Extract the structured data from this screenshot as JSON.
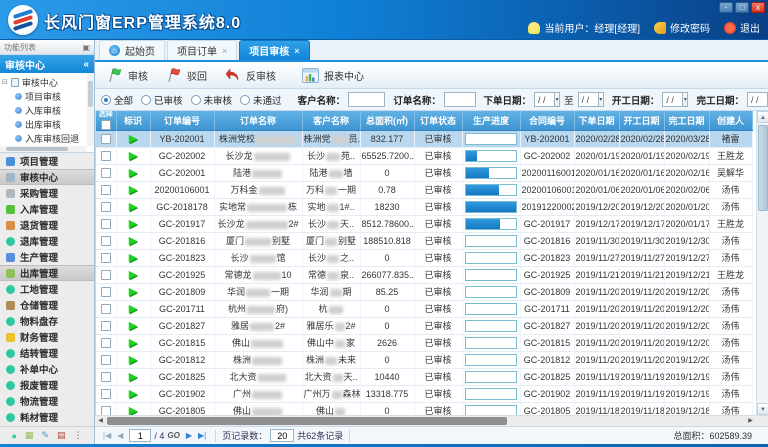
{
  "header": {
    "title": "长风门窗ERP管理系统8.0",
    "user": "当前用户：经理[经理]",
    "change_password": "修改密码",
    "logout": "退出",
    "window": {
      "min": "-",
      "max": "□",
      "close": "x"
    }
  },
  "sidebar": {
    "panel_title": "功能列表",
    "pin_icon": "▣",
    "section_title": "审核中心",
    "collapse_icon": "«",
    "tree": {
      "root": "审核中心",
      "children": [
        "项目审核",
        "入库审核",
        "出库审核",
        "入库审核回退"
      ]
    },
    "menu": [
      {
        "label": "项目管理",
        "icon": "page-icon",
        "color": "#4a90d9",
        "shape": "sq",
        "selected": false
      },
      {
        "label": "审核中心",
        "icon": "audit-icon",
        "color": "#9fb6c9",
        "shape": "sq",
        "selected": true
      },
      {
        "label": "采购管理",
        "icon": "cart-icon",
        "color": "#b0b8bf",
        "shape": "sq",
        "selected": false
      },
      {
        "label": "入库管理",
        "icon": "cart-in-icon",
        "color": "#57c13e",
        "shape": "sq",
        "selected": false
      },
      {
        "label": "退货管理",
        "icon": "cart-return-icon",
        "color": "#d98f4a",
        "shape": "sq",
        "selected": false
      },
      {
        "label": "退库管理",
        "icon": "dot-icon",
        "color": "#2dc9a0",
        "shape": "",
        "selected": false
      },
      {
        "label": "生产管理",
        "icon": "production-icon",
        "color": "#5b8fd9",
        "shape": "sq",
        "selected": false
      },
      {
        "label": "出库管理",
        "icon": "cart-out-icon",
        "color": "#8fbf5a",
        "shape": "sq",
        "selected": true
      },
      {
        "label": "工地管理",
        "icon": "dot-icon",
        "color": "#2dc9a0",
        "shape": "",
        "selected": false
      },
      {
        "label": "仓储管理",
        "icon": "warehouse-icon",
        "color": "#b08a5a",
        "shape": "sq",
        "selected": false
      },
      {
        "label": "物料盘存",
        "icon": "dot-icon",
        "color": "#2dc9a0",
        "shape": "",
        "selected": false
      },
      {
        "label": "财务管理",
        "icon": "finance-icon",
        "color": "#e8c231",
        "shape": "sq",
        "selected": false
      },
      {
        "label": "结转管理",
        "icon": "dot-icon",
        "color": "#2dc9a0",
        "shape": "",
        "selected": false
      },
      {
        "label": "补单中心",
        "icon": "dot-icon",
        "color": "#2dc9a0",
        "shape": "",
        "selected": false
      },
      {
        "label": "报废管理",
        "icon": "dot-icon",
        "color": "#2dc9a0",
        "shape": "",
        "selected": false
      },
      {
        "label": "物流管理",
        "icon": "dot-icon",
        "color": "#2dc9a0",
        "shape": "",
        "selected": false
      },
      {
        "label": "耗材管理",
        "icon": "dot-icon",
        "color": "#2dc9a0",
        "shape": "",
        "selected": false
      }
    ],
    "dock_icons": [
      {
        "name": "dot-icon",
        "glyph": "●",
        "color": "#2dc9a0"
      },
      {
        "name": "cart-icon",
        "glyph": "▦",
        "color": "#8fbf5a"
      },
      {
        "name": "pen-icon",
        "glyph": "✎",
        "color": "#4a90d9"
      },
      {
        "name": "book-icon",
        "glyph": "▤",
        "color": "#b0452f"
      },
      {
        "name": "more-icon",
        "glyph": "⋮",
        "color": "#555555"
      }
    ]
  },
  "tabs": [
    {
      "label": "起始页",
      "icon": "home-icon",
      "closable": false,
      "active": false
    },
    {
      "label": "项目订单",
      "icon": "",
      "closable": true,
      "active": false
    },
    {
      "label": "项目审核",
      "icon": "",
      "closable": true,
      "active": true
    }
  ],
  "close_glyph": "×",
  "toolbar": {
    "audit": "审核",
    "reject": "驳回",
    "unaudit": "反审核",
    "report": "报表中心"
  },
  "filters": {
    "radios": [
      {
        "label": "全部",
        "checked": true
      },
      {
        "label": "已审核",
        "checked": false
      },
      {
        "label": "未审核",
        "checked": false
      },
      {
        "label": "未通过",
        "checked": false
      }
    ],
    "customer_label": "客户名称：",
    "order_label": "订单名称：",
    "order_date_label": "下单日期：",
    "to_label": "至",
    "start_date_label": "开工日期：",
    "finish_date_label": "完工日期：",
    "date_placeholder": "/  /",
    "dropdown_glyph": "▾"
  },
  "table": {
    "headers": [
      "选择",
      "标识",
      "订单编号",
      "订单名称",
      "客户名称",
      "总面积(㎡)",
      "订单状态",
      "生产进度",
      "合同编号",
      "下单日期",
      "开工日期",
      "完工日期",
      "创建人"
    ],
    "rows": [
      {
        "sel": true,
        "id": "YB-202001",
        "np": "株洲党校",
        "nb": 40,
        "ns": "",
        "cp": "株洲党",
        "cbw": 16,
        "cs": "员..",
        "area": "832.177",
        "status": "已审核",
        "prog": 0,
        "contract": "YB-202001",
        "d1": "2020/02/28",
        "d2": "2020/02/28",
        "d3": "2020/03/28",
        "creator": "褚雷"
      },
      {
        "sel": false,
        "id": "GC-202002",
        "np": "长沙龙",
        "nb": 36,
        "ns": "",
        "cp": "长沙",
        "cbw": 14,
        "cs": "苑..",
        "area": "65525.7200..",
        "status": "已审核",
        "prog": 22,
        "contract": "GC-202002",
        "d1": "2020/01/19",
        "d2": "2020/01/19",
        "d3": "2020/02/19",
        "creator": "王胜龙"
      },
      {
        "sel": false,
        "id": "GC-202001",
        "np": "陆港",
        "nb": 30,
        "ns": "",
        "cp": "陆港",
        "cbw": 14,
        "cs": "墙",
        "area": "0",
        "status": "已审核",
        "prog": 45,
        "contract": "20200116001",
        "d1": "2020/01/16",
        "d2": "2020/01/16",
        "d3": "2020/02/16",
        "creator": "吴解华"
      },
      {
        "sel": false,
        "id": "20200106001",
        "np": "万科金",
        "nb": 26,
        "ns": "",
        "cp": "万科",
        "cbw": 12,
        "cs": "一期",
        "area": "0.78",
        "status": "已审核",
        "prog": 65,
        "contract": "20200106001",
        "d1": "2020/01/06",
        "d2": "2020/01/06",
        "d3": "2020/02/06",
        "creator": "汤伟"
      },
      {
        "sel": false,
        "id": "GC-2018178",
        "np": "实地常",
        "nb": 40,
        "ns": "栋",
        "cp": "实地",
        "cbw": 12,
        "cs": "1#..",
        "area": "18230",
        "status": "已审核",
        "prog": 100,
        "contract": "20191220002",
        "d1": "2019/12/20",
        "d2": "2019/12/20",
        "d3": "2020/01/20",
        "creator": "汤伟"
      },
      {
        "sel": false,
        "id": "GC-201917",
        "np": "长沙龙",
        "nb": 42,
        "ns": "2#",
        "cp": "长沙",
        "cbw": 12,
        "cs": "天..",
        "area": "8512.78600..",
        "status": "已审核",
        "prog": 68,
        "contract": "GC-201917",
        "d1": "2019/12/17",
        "d2": "2019/12/17",
        "d3": "2020/01/17",
        "creator": "王胜龙"
      },
      {
        "sel": false,
        "id": "GC-201816",
        "np": "厦门",
        "nb": 26,
        "ns": "别墅",
        "cp": "厦门",
        "cbw": 12,
        "cs": "别墅",
        "area": "188510.818",
        "status": "已审核",
        "prog": 0,
        "contract": "GC-201816",
        "d1": "2019/11/30",
        "d2": "2019/11/30",
        "d3": "2019/12/30",
        "creator": "汤伟"
      },
      {
        "sel": false,
        "id": "GC-201823",
        "np": "长沙",
        "nb": 26,
        "ns": "馆",
        "cp": "长沙",
        "cbw": 12,
        "cs": "之..",
        "area": "0",
        "status": "已审核",
        "prog": 0,
        "contract": "GC-201823",
        "d1": "2019/11/27",
        "d2": "2019/11/27",
        "d3": "2019/12/27",
        "creator": "汤伟"
      },
      {
        "sel": false,
        "id": "GC-201925",
        "np": "常德龙",
        "nb": 28,
        "ns": "10",
        "cp": "常德",
        "cbw": 12,
        "cs": "泉..",
        "area": "266077.835..",
        "status": "已审核",
        "prog": 0,
        "contract": "GC-201925",
        "d1": "2019/11/21",
        "d2": "2019/11/21",
        "d3": "2019/12/21",
        "creator": "王胜龙"
      },
      {
        "sel": false,
        "id": "GC-201809",
        "np": "华润",
        "nb": 24,
        "ns": "一期",
        "cp": "华润",
        "cbw": 12,
        "cs": "期",
        "area": "85.25",
        "status": "已审核",
        "prog": 0,
        "contract": "GC-201809",
        "d1": "2019/11/20",
        "d2": "2019/11/20",
        "d3": "2019/12/20",
        "creator": "汤伟"
      },
      {
        "sel": false,
        "id": "GC-201711",
        "np": "杭州",
        "nb": 28,
        "ns": "府)",
        "cp": "杭",
        "cbw": 14,
        "cs": "",
        "area": "0",
        "status": "已审核",
        "prog": 0,
        "contract": "GC-201711",
        "d1": "2019/11/20",
        "d2": "2019/11/20",
        "d3": "2019/12/20",
        "creator": "汤伟"
      },
      {
        "sel": false,
        "id": "GC-201827",
        "np": "雅居",
        "nb": 24,
        "ns": "2#",
        "cp": "雅居乐",
        "cbw": 10,
        "cs": "2#",
        "area": "0",
        "status": "已审核",
        "prog": 0,
        "contract": "GC-201827",
        "d1": "2019/11/20",
        "d2": "2019/11/20",
        "d3": "2019/12/20",
        "creator": "汤伟"
      },
      {
        "sel": false,
        "id": "GC-201815",
        "np": "佛山",
        "nb": 32,
        "ns": "",
        "cp": "佛山中",
        "cbw": 10,
        "cs": "家",
        "area": "2626",
        "status": "已审核",
        "prog": 0,
        "contract": "GC-201815",
        "d1": "2019/11/20",
        "d2": "2019/11/20",
        "d3": "2019/12/20",
        "creator": "汤伟"
      },
      {
        "sel": false,
        "id": "GC-201812",
        "np": "株洲",
        "nb": 30,
        "ns": "",
        "cp": "株洲",
        "cbw": 12,
        "cs": "未来",
        "area": "0",
        "status": "已审核",
        "prog": 0,
        "contract": "GC-201812",
        "d1": "2019/11/20",
        "d2": "2019/11/20",
        "d3": "2019/12/20",
        "creator": "汤伟"
      },
      {
        "sel": false,
        "id": "GC-201825",
        "np": "北大资",
        "nb": 28,
        "ns": "",
        "cp": "北大资",
        "cbw": 10,
        "cs": "天..",
        "area": "10440",
        "status": "已审核",
        "prog": 0,
        "contract": "GC-201825",
        "d1": "2019/11/19",
        "d2": "2019/11/19",
        "d3": "2019/12/19",
        "creator": "汤伟"
      },
      {
        "sel": false,
        "id": "GC-201902",
        "np": "广州",
        "nb": 30,
        "ns": "",
        "cp": "广州万",
        "cbw": 10,
        "cs": "森林",
        "area": "13318.775",
        "status": "已审核",
        "prog": 0,
        "contract": "GC-201902",
        "d1": "2019/11/19",
        "d2": "2019/11/19",
        "d3": "2019/12/19",
        "creator": "汤伟"
      },
      {
        "sel": false,
        "id": "GC-201805",
        "np": "佛山",
        "nb": 30,
        "ns": "",
        "cp": "佛山",
        "cbw": 10,
        "cs": "",
        "area": "0",
        "status": "已审核",
        "prog": 0,
        "contract": "GC-201805",
        "d1": "2019/11/18",
        "d2": "2019/11/18",
        "d3": "2019/12/18",
        "creator": "汤伟"
      }
    ]
  },
  "pagination": {
    "first": "|◀",
    "prev": "◀",
    "next": "▶",
    "last": "▶|",
    "page": "1",
    "of": "/ 4",
    "go": "GO",
    "page_size_label": "页记录数：",
    "page_size": "20",
    "records": "共62条记录",
    "total_label": "总面积：",
    "total_value": "602589.39"
  }
}
